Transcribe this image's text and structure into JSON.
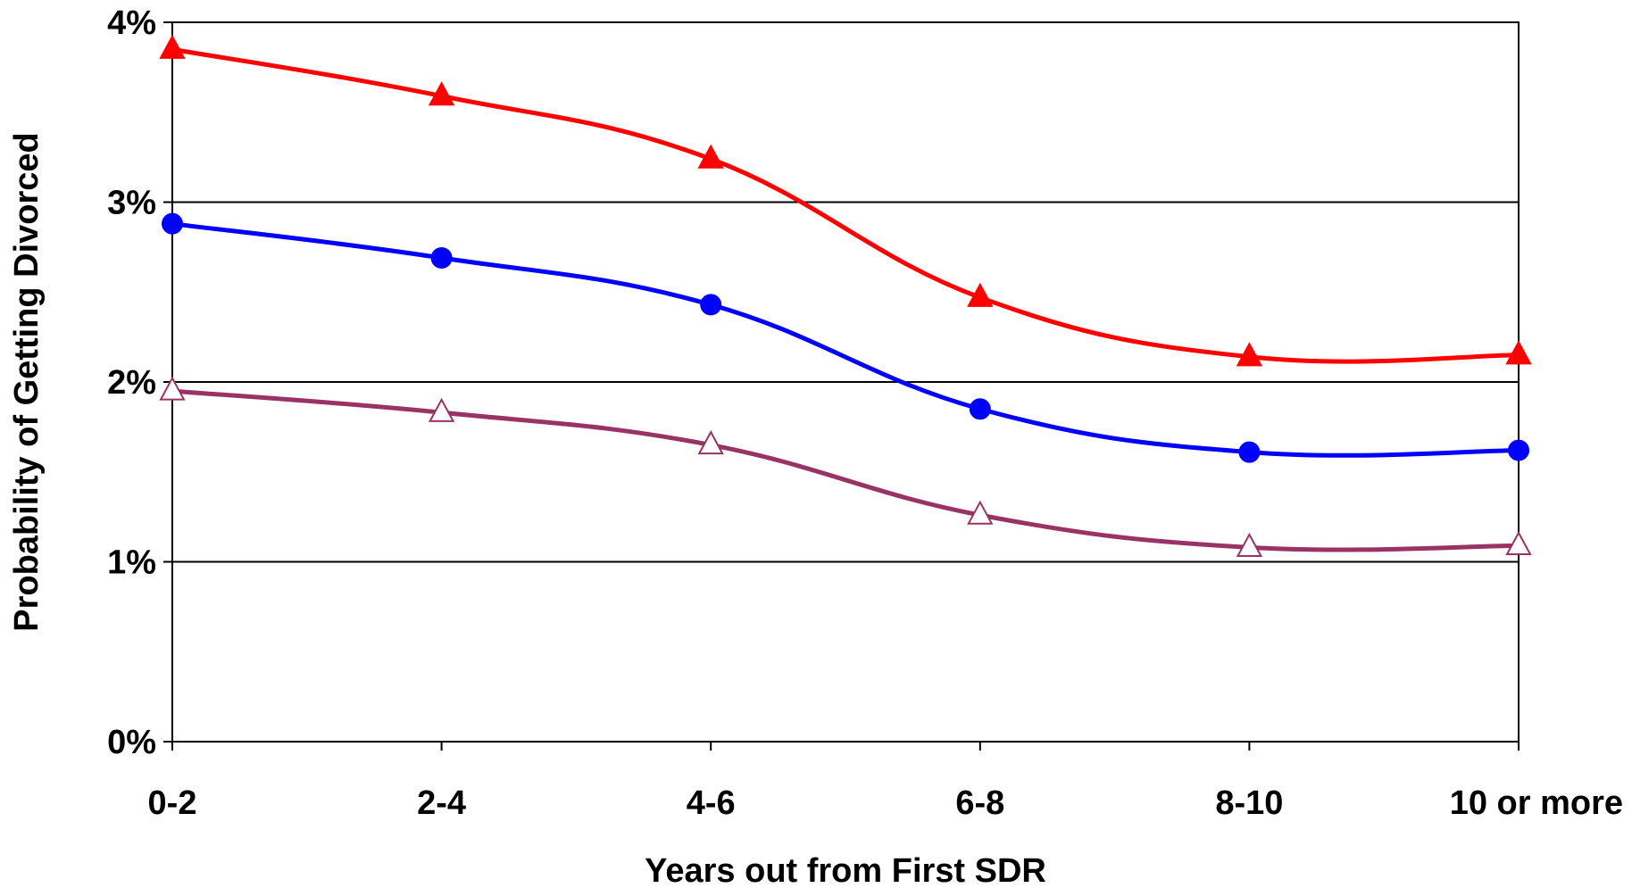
{
  "chart_data": {
    "type": "line",
    "title": "",
    "xlabel": "Years out from First SDR",
    "ylabel": "Probability of Getting Divorced",
    "categories": [
      "0-2",
      "2-4",
      "4-6",
      "6-8",
      "8-10",
      "10 or more"
    ],
    "ylim": [
      0,
      4
    ],
    "yticks": [
      {
        "value": 0,
        "label": "0%"
      },
      {
        "value": 1,
        "label": "1%"
      },
      {
        "value": 2,
        "label": "2%"
      },
      {
        "value": 3,
        "label": "3%"
      },
      {
        "value": 4,
        "label": "4%"
      }
    ],
    "grid": "horizontal",
    "legend": "none",
    "series": [
      {
        "color": "#ff0000",
        "marker": "filled-triangle",
        "values": [
          3.85,
          3.59,
          3.24,
          2.47,
          2.14,
          2.15
        ]
      },
      {
        "color": "#0000ff",
        "marker": "filled-circle",
        "values": [
          2.88,
          2.69,
          2.43,
          1.85,
          1.61,
          1.62
        ]
      },
      {
        "color": "#993366",
        "marker": "open-triangle",
        "values": [
          1.95,
          1.83,
          1.65,
          1.26,
          1.08,
          1.09
        ]
      }
    ]
  }
}
